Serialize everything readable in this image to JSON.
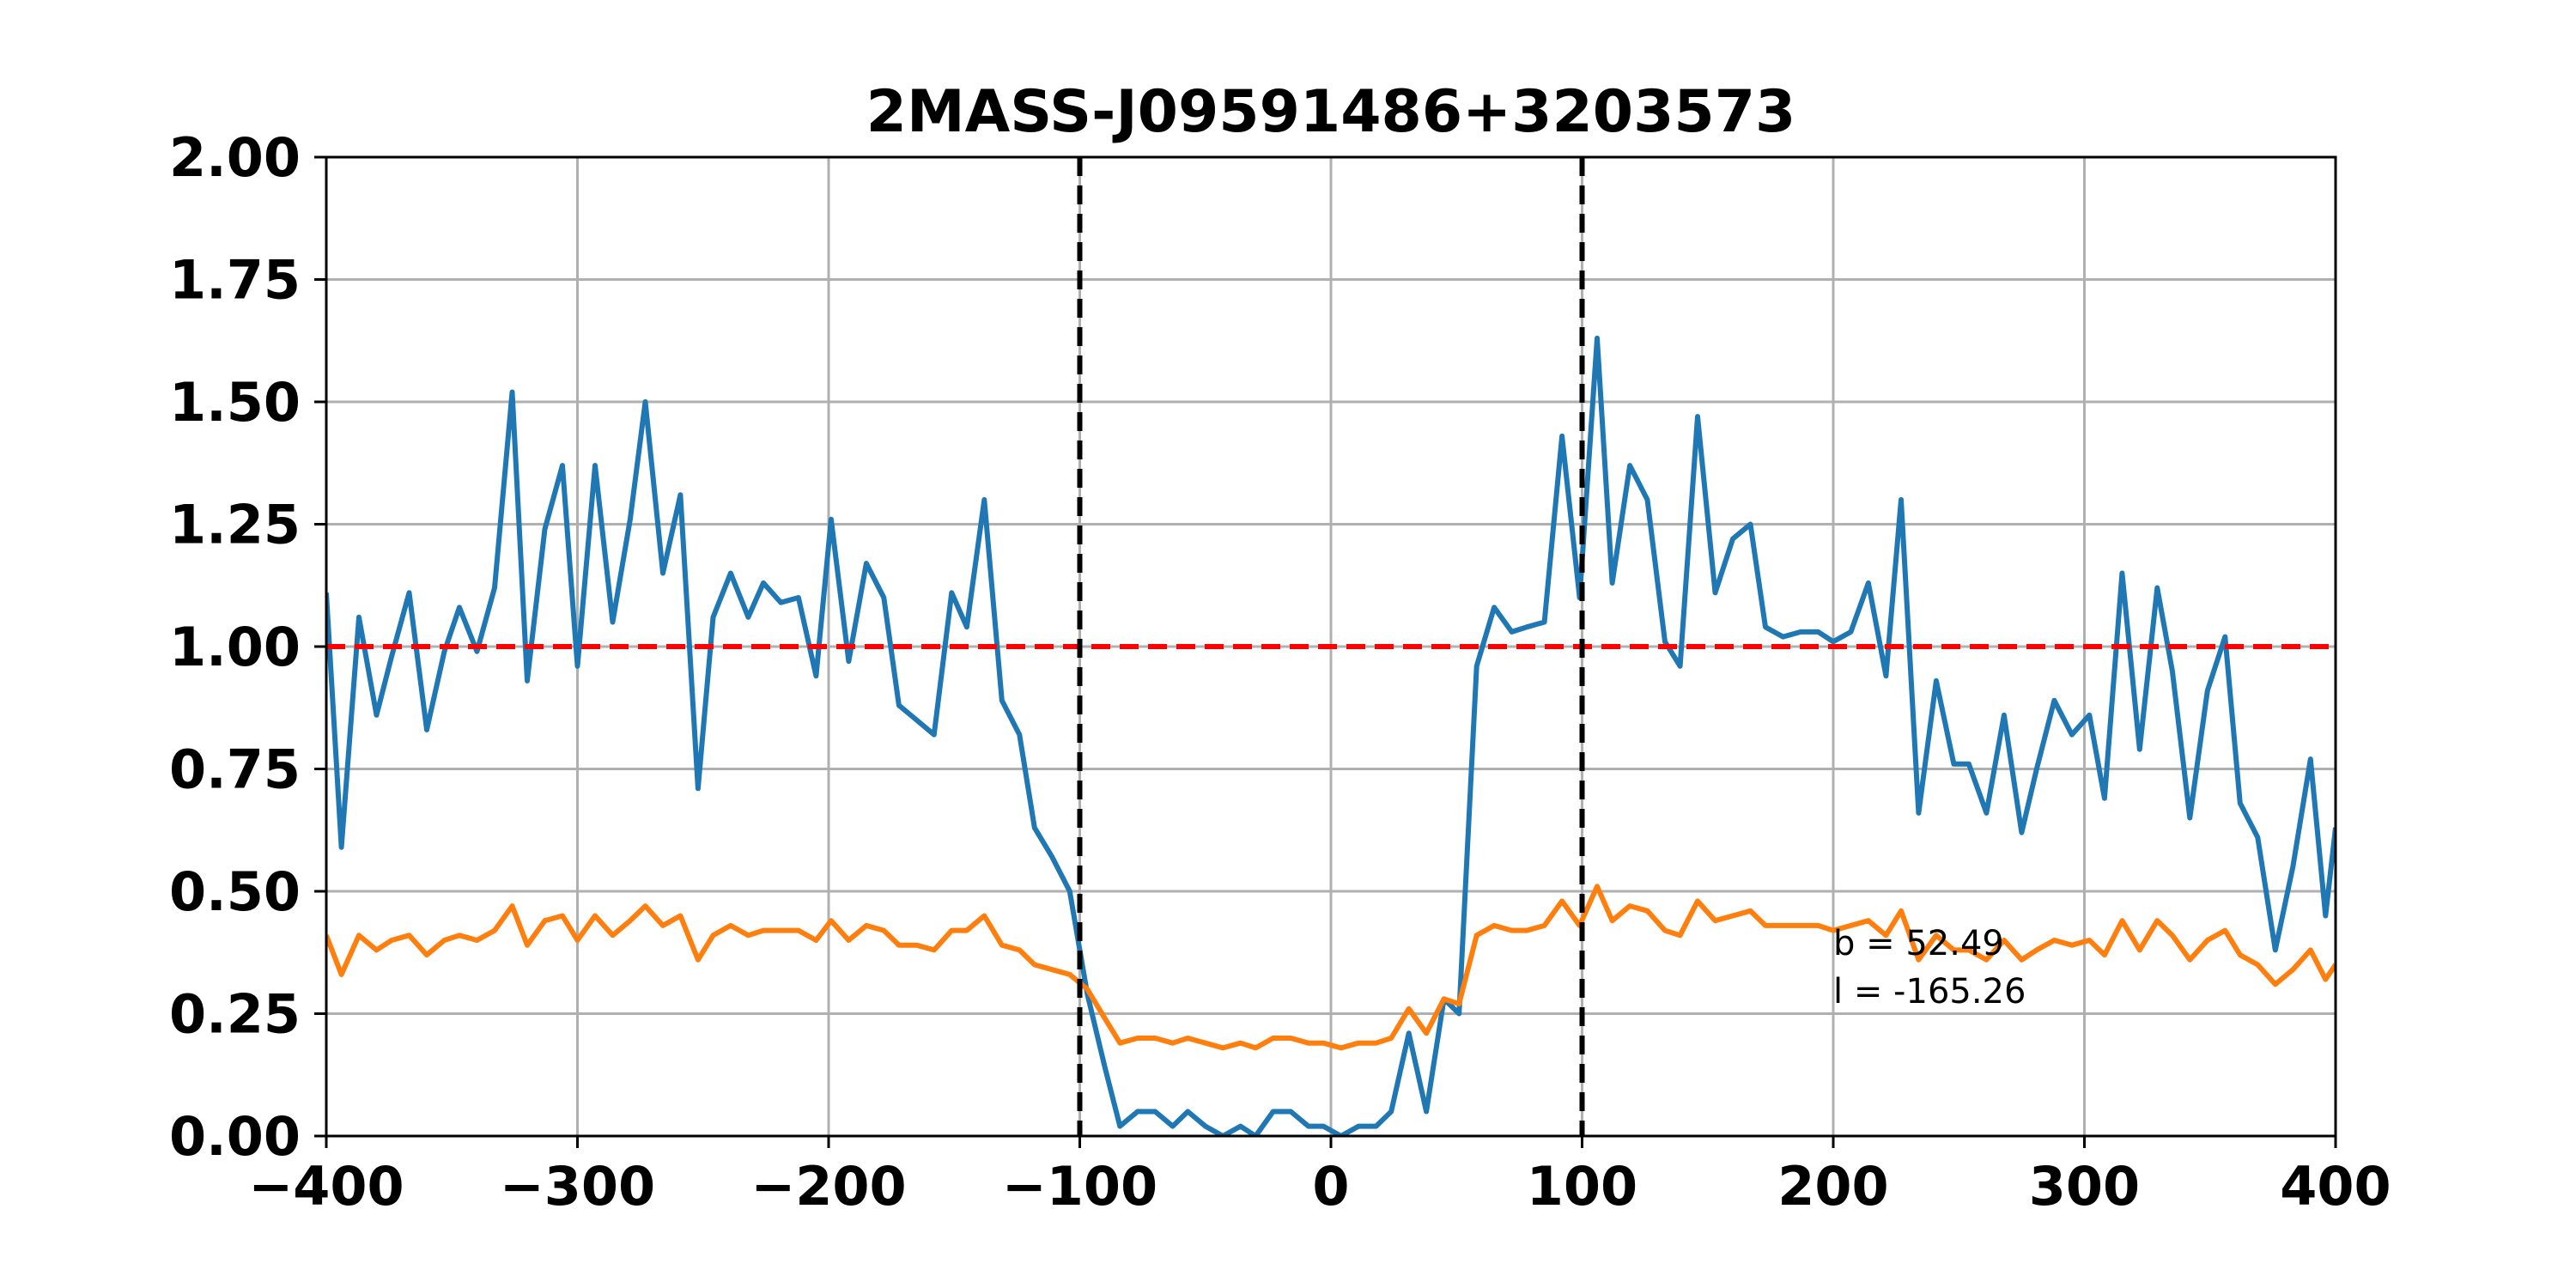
{
  "chart_data": {
    "type": "line",
    "title": "2MASS-J09591486+3203573",
    "xlabel": "",
    "ylabel": "",
    "xlim": [
      -400,
      400
    ],
    "ylim": [
      0,
      2.0
    ],
    "x_ticks": [
      -400,
      -300,
      -200,
      -100,
      0,
      100,
      200,
      300,
      400
    ],
    "x_tick_labels": [
      "−400",
      "−300",
      "−200",
      "−100",
      "0",
      "100",
      "200",
      "300",
      "400"
    ],
    "y_ticks": [
      0,
      0.25,
      0.5,
      0.75,
      1.0,
      1.25,
      1.5,
      1.75,
      2.0
    ],
    "y_tick_labels": [
      "0.00",
      "0.25",
      "0.50",
      "0.75",
      "1.00",
      "1.25",
      "1.50",
      "1.75",
      "2.00"
    ],
    "grid": true,
    "series": [
      {
        "color": "#1f77b4",
        "x": [
          -400,
          -394,
          -387,
          -380,
          -374,
          -367,
          -360,
          -353,
          -347,
          -340,
          -333,
          -326,
          -320,
          -313,
          -306,
          -300,
          -293,
          -286,
          -279,
          -273,
          -266,
          -259,
          -252,
          -246,
          -239,
          -232,
          -226,
          -219,
          -212,
          -205,
          -199,
          -192,
          -185,
          -178,
          -172,
          -165,
          -158,
          -151,
          -145,
          -138,
          -131,
          -124,
          -118,
          -111,
          -104,
          -97,
          -90,
          -84,
          -77,
          -70,
          -63,
          -57,
          -50,
          -43,
          -36,
          -30,
          -23,
          -16,
          -9,
          -3,
          4,
          11,
          18,
          24,
          31,
          38,
          45,
          51,
          58,
          65,
          72,
          78,
          85,
          92,
          99,
          106,
          112,
          119,
          126,
          133,
          139,
          146,
          153,
          160,
          167,
          173,
          180,
          187,
          194,
          200,
          207,
          214,
          221,
          227,
          234,
          241,
          248,
          254,
          261,
          268,
          275,
          281,
          288,
          295,
          302,
          308,
          315,
          322,
          329,
          335,
          342,
          349,
          356,
          362,
          369,
          376,
          383,
          390,
          396,
          400
        ],
        "y": [
          1.11,
          0.59,
          1.06,
          0.86,
          0.98,
          1.11,
          0.83,
          0.99,
          1.08,
          0.99,
          1.12,
          1.52,
          0.93,
          1.24,
          1.37,
          0.96,
          1.37,
          1.05,
          1.26,
          1.5,
          1.15,
          1.31,
          0.71,
          1.06,
          1.15,
          1.06,
          1.13,
          1.09,
          1.1,
          0.94,
          1.26,
          0.97,
          1.17,
          1.1,
          0.88,
          0.85,
          0.82,
          1.11,
          1.04,
          1.3,
          0.89,
          0.82,
          0.63,
          0.57,
          0.5,
          0.29,
          0.14,
          0.02,
          0.05,
          0.05,
          0.02,
          0.05,
          0.02,
          0.0,
          0.02,
          0.0,
          0.05,
          0.05,
          0.02,
          0.02,
          0.0,
          0.02,
          0.02,
          0.05,
          0.21,
          0.05,
          0.28,
          0.25,
          0.96,
          1.08,
          1.03,
          1.04,
          1.05,
          1.43,
          1.1,
          1.63,
          1.13,
          1.37,
          1.3,
          1.01,
          0.96,
          1.47,
          1.11,
          1.22,
          1.25,
          1.04,
          1.02,
          1.03,
          1.03,
          1.01,
          1.03,
          1.13,
          0.94,
          1.3,
          0.66,
          0.93,
          0.76,
          0.76,
          0.66,
          0.86,
          0.62,
          0.75,
          0.89,
          0.82,
          0.86,
          0.69,
          1.15,
          0.79,
          1.12,
          0.95,
          0.65,
          0.91,
          1.02,
          0.68,
          0.61,
          0.38,
          0.55,
          0.77,
          0.45,
          0.63
        ]
      },
      {
        "color": "#ff7f0e",
        "x": [
          -400,
          -394,
          -387,
          -380,
          -374,
          -367,
          -360,
          -353,
          -347,
          -340,
          -333,
          -326,
          -320,
          -313,
          -306,
          -300,
          -293,
          -286,
          -279,
          -273,
          -266,
          -259,
          -252,
          -246,
          -239,
          -232,
          -226,
          -219,
          -212,
          -205,
          -199,
          -192,
          -185,
          -178,
          -172,
          -165,
          -158,
          -151,
          -145,
          -138,
          -131,
          -124,
          -118,
          -111,
          -104,
          -97,
          -90,
          -84,
          -77,
          -70,
          -63,
          -57,
          -50,
          -43,
          -36,
          -30,
          -23,
          -16,
          -9,
          -3,
          4,
          11,
          18,
          24,
          31,
          38,
          45,
          51,
          58,
          65,
          72,
          78,
          85,
          92,
          99,
          106,
          112,
          119,
          126,
          133,
          139,
          146,
          153,
          160,
          167,
          173,
          180,
          187,
          194,
          200,
          207,
          214,
          221,
          227,
          234,
          241,
          248,
          254,
          261,
          268,
          275,
          281,
          288,
          295,
          302,
          308,
          315,
          322,
          329,
          335,
          342,
          349,
          356,
          362,
          369,
          376,
          383,
          390,
          396,
          400
        ],
        "y": [
          0.41,
          0.33,
          0.41,
          0.38,
          0.4,
          0.41,
          0.37,
          0.4,
          0.41,
          0.4,
          0.42,
          0.47,
          0.39,
          0.44,
          0.45,
          0.4,
          0.45,
          0.41,
          0.44,
          0.47,
          0.43,
          0.45,
          0.36,
          0.41,
          0.43,
          0.41,
          0.42,
          0.42,
          0.42,
          0.4,
          0.44,
          0.4,
          0.43,
          0.42,
          0.39,
          0.39,
          0.38,
          0.42,
          0.42,
          0.45,
          0.39,
          0.38,
          0.35,
          0.34,
          0.33,
          0.3,
          0.24,
          0.19,
          0.2,
          0.2,
          0.19,
          0.2,
          0.19,
          0.18,
          0.19,
          0.18,
          0.2,
          0.2,
          0.19,
          0.19,
          0.18,
          0.19,
          0.19,
          0.2,
          0.26,
          0.21,
          0.28,
          0.27,
          0.41,
          0.43,
          0.42,
          0.42,
          0.43,
          0.48,
          0.43,
          0.51,
          0.44,
          0.47,
          0.46,
          0.42,
          0.41,
          0.48,
          0.44,
          0.45,
          0.46,
          0.43,
          0.43,
          0.43,
          0.43,
          0.42,
          0.43,
          0.44,
          0.41,
          0.46,
          0.36,
          0.41,
          0.38,
          0.38,
          0.36,
          0.4,
          0.36,
          0.38,
          0.4,
          0.39,
          0.4,
          0.37,
          0.44,
          0.38,
          0.44,
          0.41,
          0.36,
          0.4,
          0.42,
          0.37,
          0.35,
          0.31,
          0.34,
          0.38,
          0.32,
          0.35
        ]
      }
    ],
    "reference_lines": [
      {
        "orientation": "horizontal",
        "value": 1.0,
        "color": "#ff0000",
        "style": "dashed"
      },
      {
        "orientation": "vertical",
        "value": -100,
        "color": "#000000",
        "style": "dashed"
      },
      {
        "orientation": "vertical",
        "value": 100,
        "color": "#000000",
        "style": "dashed"
      }
    ],
    "annotations": {
      "b_text": "b = 52.49",
      "l_text": "l = -165.26",
      "x": 200,
      "y": 0.37
    }
  }
}
